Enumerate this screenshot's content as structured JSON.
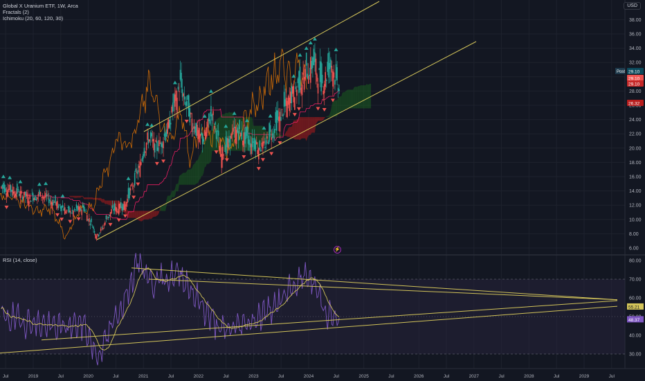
{
  "header": {
    "symbol_line": "Global X Uranium ETF, 1W, Arca",
    "indicator_1": "Fractals (2)",
    "indicator_2": "Ichimoku (20, 60, 120, 30)",
    "currency": "USD"
  },
  "rsi_pane": {
    "title": "RSI (14, close)",
    "label_value": "55.21",
    "label_value_2": "48.37"
  },
  "price_labels": {
    "post": "Post",
    "post_value": "29.10",
    "last_value": "29.10",
    "last_value_2": "29.10",
    "ichimoku_value": "26.32"
  },
  "colors": {
    "background": "#131722",
    "up_candle": "#26a69a",
    "down_candle": "#ef5350",
    "fractal_up": "#26a69a",
    "fractal_down": "#ef5350",
    "channel_lines": "#d4c55a",
    "rsi_line": "#7e57c2",
    "rsi_ma": "#d4c55a",
    "rsi_band": "#2a2540",
    "chikou": "#f57c00",
    "kijun": "#e91e63",
    "cloud_bull": "#1b5e20",
    "cloud_bear": "#b71c1c"
  },
  "chart_data": [
    {
      "type": "candlestick",
      "title": "Global X Uranium ETF, 1W, Arca",
      "ylabel": "USD",
      "ylim": [
        5,
        41
      ],
      "y_ticks": [
        "38.00",
        "36.00",
        "34.00",
        "32.00",
        "30.00",
        "28.00",
        "26.00",
        "24.00",
        "22.00",
        "20.00",
        "18.00",
        "16.00",
        "14.00",
        "12.00",
        "10.00",
        "8.00",
        "6.00"
      ],
      "x_ticks": [
        "Jul",
        "2019",
        "Jul",
        "2020",
        "Jul",
        "2021",
        "Jul",
        "2022",
        "Jul",
        "2023",
        "Jul",
        "2024",
        "Jul",
        "2025",
        "Jul",
        "2026",
        "Jul",
        "2027",
        "Jul",
        "2028",
        "Jul",
        "2029",
        "Jul"
      ],
      "series": [
        {
          "name": "Price (approx. weekly close)",
          "points": [
            [
              "2018-06",
              14.5
            ],
            [
              "2018-09",
              14.0
            ],
            [
              "2018-12",
              13.0
            ],
            [
              "2019-03",
              13.4
            ],
            [
              "2019-06",
              12.2
            ],
            [
              "2019-09",
              11.0
            ],
            [
              "2019-12",
              11.6
            ],
            [
              "2020-03",
              7.6
            ],
            [
              "2020-06",
              11.2
            ],
            [
              "2020-09",
              12.0
            ],
            [
              "2020-12",
              17.0
            ],
            [
              "2021-02",
              21.5
            ],
            [
              "2021-04",
              20.0
            ],
            [
              "2021-06",
              22.0
            ],
            [
              "2021-09",
              29.0
            ],
            [
              "2021-12",
              23.0
            ],
            [
              "2022-02",
              21.0
            ],
            [
              "2022-04",
              25.0
            ],
            [
              "2022-06",
              19.0
            ],
            [
              "2022-09",
              22.5
            ],
            [
              "2022-12",
              21.0
            ],
            [
              "2023-03",
              20.0
            ],
            [
              "2023-06",
              23.5
            ],
            [
              "2023-09",
              27.0
            ],
            [
              "2023-12",
              30.0
            ],
            [
              "2024-02",
              32.0
            ],
            [
              "2024-04",
              29.0
            ],
            [
              "2024-06",
              32.0
            ],
            [
              "2024-07",
              29.1
            ]
          ]
        }
      ],
      "annotations": [
        "Ascending channel (upper trendline)",
        "Ascending channel (lower trendline)",
        "Ichimoku cloud",
        "Fractal markers"
      ]
    },
    {
      "type": "line",
      "title": "RSI (14, close)",
      "ylim": [
        27,
        82
      ],
      "y_ticks": [
        "80.00",
        "70.00",
        "60.00",
        "50.00",
        "40.00",
        "30.00"
      ],
      "series": [
        {
          "name": "RSI",
          "points": [
            [
              "2018-06",
              50
            ],
            [
              "2018-12",
              47
            ],
            [
              "2019-06",
              44
            ],
            [
              "2019-12",
              46
            ],
            [
              "2020-03",
              28
            ],
            [
              "2020-09",
              60
            ],
            [
              "2020-12",
              80
            ],
            [
              "2021-03",
              68
            ],
            [
              "2021-09",
              73
            ],
            [
              "2022-02",
              55
            ],
            [
              "2022-06",
              42
            ],
            [
              "2022-12",
              47
            ],
            [
              "2023-06",
              56
            ],
            [
              "2023-12",
              72
            ],
            [
              "2024-02",
              68
            ],
            [
              "2024-05",
              52
            ],
            [
              "2024-07",
              48.37
            ]
          ]
        }
      ],
      "band": [
        30,
        70
      ],
      "midline": 50
    }
  ]
}
